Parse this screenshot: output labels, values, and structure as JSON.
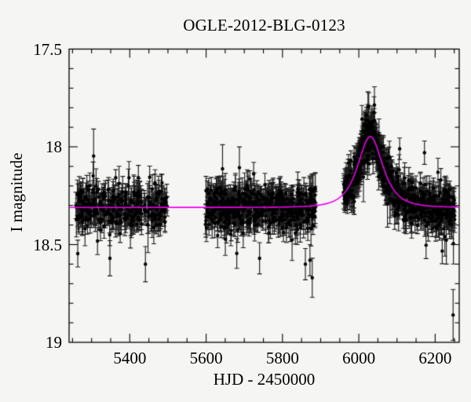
{
  "figure": {
    "background": "#f5f5f4",
    "frame_color": "#000000",
    "text_color": "#000000"
  },
  "chart_data": {
    "type": "scatter",
    "title": "OGLE-2012-BLG-0123",
    "xlabel": "HJD - 2450000",
    "ylabel": "I magnitude",
    "x_range": [
      5241,
      6263
    ],
    "y_range_mag": [
      17.5,
      19
    ],
    "y_axis_inverted": true,
    "grid": false,
    "legend": "none",
    "x_ticks": {
      "major": [
        {
          "value": 5400,
          "label": "5400"
        },
        {
          "value": 5600,
          "label": "5600"
        },
        {
          "value": 5800,
          "label": "5800"
        },
        {
          "value": 6000,
          "label": "6000"
        },
        {
          "value": 6200,
          "label": "6200"
        }
      ],
      "minor_step": 50
    },
    "y_ticks": {
      "major": [
        {
          "value": 17.5,
          "label": "17.5"
        },
        {
          "value": 18,
          "label": "18"
        },
        {
          "value": 18.5,
          "label": "18.5"
        },
        {
          "value": 19,
          "label": "19"
        }
      ],
      "minor_step": 0.1
    },
    "model_curve": {
      "kind": "paczynski_point_lens",
      "color": "#ee00ee",
      "baseline_I_mag": 18.31,
      "t0_hjd": 6030,
      "tE_days": 41,
      "u0": 0.93,
      "peak_I_mag": 17.96
    },
    "photometry": {
      "marker_color": "#000000",
      "errorbar_color": "#1c1c1c",
      "scatter_sigma_mag": 0.052,
      "err_mag_min": 0.04,
      "err_mag_max": 0.09,
      "outlier_fraction": 0.022,
      "seed": 20120123,
      "seasons": [
        {
          "name": "season-1",
          "start_hjd": 5258,
          "end_hjd": 5500,
          "n_points": 340
        },
        {
          "name": "season-2",
          "start_hjd": 5598,
          "end_hjd": 5886,
          "n_points": 560
        },
        {
          "name": "season-3",
          "start_hjd": 5960,
          "end_hjd": 6252,
          "n_points": 640
        },
        {
          "name": "season-3-peak-extra",
          "start_hjd": 5985,
          "end_hjd": 6085,
          "n_points": 160
        }
      ],
      "notable_outliers": [
        {
          "t_hjd": 6247,
          "I_mag": 18.86,
          "err_mag": 0.13
        },
        {
          "t_hjd": 5860,
          "I_mag": 18.6,
          "err_mag": 0.08
        },
        {
          "t_hjd": 5872,
          "I_mag": 18.58,
          "err_mag": 0.08
        },
        {
          "t_hjd": 5878,
          "I_mag": 18.67,
          "err_mag": 0.1
        },
        {
          "t_hjd": 6107,
          "I_mag": 18.01,
          "err_mag": 0.055
        },
        {
          "t_hjd": 6172,
          "I_mag": 18.03,
          "err_mag": 0.06
        },
        {
          "t_hjd": 5740,
          "I_mag": 18.57,
          "err_mag": 0.08
        },
        {
          "t_hjd": 5348,
          "I_mag": 18.57,
          "err_mag": 0.09
        },
        {
          "t_hjd": 5441,
          "I_mag": 18.6,
          "err_mag": 0.09
        }
      ]
    }
  }
}
